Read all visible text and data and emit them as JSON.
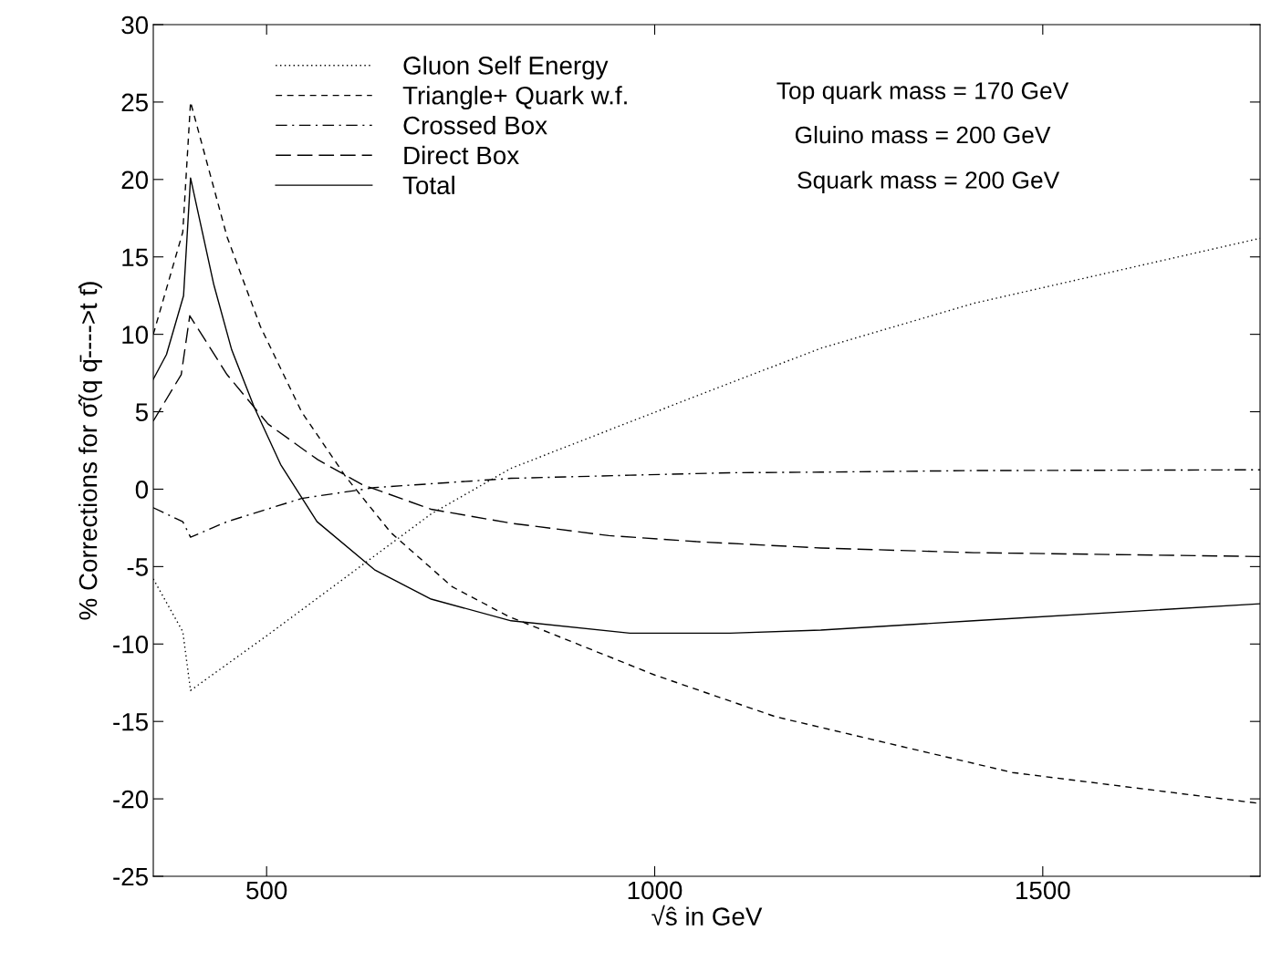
{
  "chart_data": {
    "type": "line",
    "xlabel": "√ŝ in GeV",
    "ylabel": "% Corrections for σ̂(q q̄---->t t̄)",
    "xlim": [
      354,
      1780
    ],
    "ylim": [
      -25,
      30
    ],
    "xticks": [
      500,
      1000,
      1500
    ],
    "yticks": [
      -25,
      -20,
      -15,
      -10,
      -5,
      0,
      5,
      10,
      15,
      20,
      25,
      30
    ],
    "grid": false,
    "legend": "top left",
    "marker": "none",
    "annotations": [
      "Top quark mass = 170 GeV",
      "Gluino mass = 200 GeV",
      "Squark mass = 200 GeV"
    ],
    "series": [
      {
        "name": "Gluon Self Energy",
        "color": "#000000",
        "line_style": "dotted",
        "x": [
          354,
          392,
          402,
          502,
          607,
          712,
          815,
          1058,
          1214,
          1411,
          1780
        ],
        "values": [
          -5.8,
          -9.2,
          -13.0,
          -9.4,
          -5.5,
          -1.6,
          1.35,
          6.1,
          9.1,
          12.0,
          16.2
        ]
      },
      {
        "name": "Triangle+ Quark w.f.",
        "color": "#000000",
        "line_style": "dashed",
        "x": [
          354,
          392,
          402,
          449,
          492,
          545,
          602,
          660,
          739,
          811,
          1000,
          1156,
          1461,
          1780
        ],
        "values": [
          10.0,
          16.6,
          25.0,
          16.3,
          10.5,
          5.0,
          0.8,
          -2.8,
          -6.3,
          -8.2,
          -12.0,
          -14.7,
          -18.3,
          -20.3
        ]
      },
      {
        "name": "Crossed Box",
        "color": "#000000",
        "line_style": "dashdot",
        "x": [
          354,
          392,
          402,
          449,
          545,
          639,
          815,
          968,
          1097,
          1214,
          1411,
          1780
        ],
        "values": [
          -1.2,
          -2.1,
          -3.1,
          -2.1,
          -0.6,
          0.1,
          0.7,
          0.9,
          1.06,
          1.1,
          1.2,
          1.25
        ]
      },
      {
        "name": "Direct Box",
        "color": "#000000",
        "line_style": "longdash",
        "x": [
          354,
          390,
          401,
          449,
          502,
          566,
          623,
          712,
          815,
          941,
          1058,
          1214,
          1411,
          1780
        ],
        "values": [
          4.4,
          7.4,
          11.2,
          7.4,
          4.2,
          1.9,
          0.3,
          -1.3,
          -2.2,
          -3.0,
          -3.4,
          -3.8,
          -4.1,
          -4.35
        ]
      },
      {
        "name": "Total",
        "color": "#000000",
        "line_style": "solid",
        "x": [
          354,
          371,
          393,
          402,
          432,
          455,
          484,
          518,
          565,
          639,
          712,
          815,
          968,
          1097,
          1214,
          1411,
          1780
        ],
        "values": [
          7.1,
          8.7,
          12.5,
          20.1,
          13.2,
          9.0,
          5.3,
          1.6,
          -2.1,
          -5.2,
          -7.1,
          -8.5,
          -9.3,
          -9.3,
          -9.1,
          -8.5,
          -7.4
        ]
      }
    ]
  }
}
